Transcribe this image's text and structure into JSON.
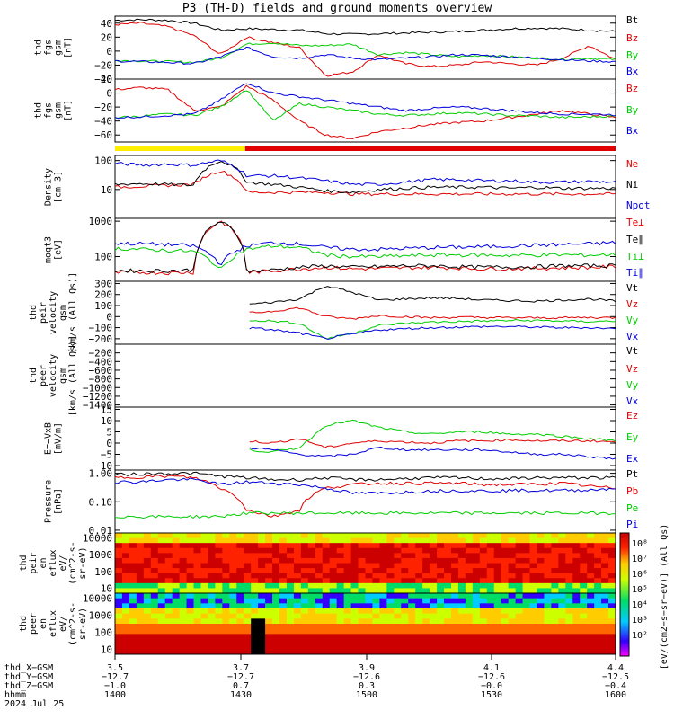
{
  "title": "P3 (TH-D) fields and ground moments overview",
  "colors": {
    "black": "#000000",
    "red": "#e00000",
    "green": "#00cc00",
    "blue": "#0000dd",
    "yellow": "#ffee00"
  },
  "chart_data": [
    {
      "type": "line",
      "panel": "fgs_gsm",
      "ylabel": [
        "thd",
        "fgs",
        "gsm",
        "[nT]"
      ],
      "ylim": [
        -40,
        50
      ],
      "yticks": [
        "40",
        "20",
        "0",
        "−20",
        "−40"
      ],
      "series": [
        {
          "name": "Bt",
          "color": "black",
          "values": [
            44,
            45,
            44,
            40,
            30,
            32,
            31,
            30,
            25,
            24,
            25,
            26,
            27,
            28,
            30,
            32,
            33,
            32,
            30,
            28
          ]
        },
        {
          "name": "Bz",
          "color": "red",
          "values": [
            38,
            40,
            35,
            22,
            -5,
            20,
            12,
            5,
            -35,
            -30,
            -5,
            -18,
            -22,
            -20,
            -15,
            -18,
            -20,
            -10,
            8,
            -12
          ]
        },
        {
          "name": "By",
          "color": "green",
          "values": [
            -13,
            -14,
            -15,
            -16,
            -10,
            10,
            12,
            8,
            8,
            10,
            -5,
            -2,
            -5,
            -8,
            -6,
            -8,
            -10,
            -12,
            -10,
            -12
          ]
        },
        {
          "name": "Bx",
          "color": "blue",
          "values": [
            -14,
            -15,
            -16,
            -18,
            -8,
            5,
            -8,
            -10,
            -5,
            -10,
            -12,
            -10,
            -8,
            -5,
            -6,
            -8,
            -10,
            -12,
            -14,
            -15
          ]
        }
      ],
      "legend": [
        "Bt",
        "Bz",
        "By",
        "Bx"
      ]
    },
    {
      "type": "line",
      "panel": "fgs_gse_zoom",
      "ylabel": [
        "thd",
        "fgs",
        "gsm",
        "[nT]"
      ],
      "ylim": [
        -70,
        20
      ],
      "yticks": [
        "20",
        "0",
        "−20",
        "−40",
        "−60"
      ],
      "series": [
        {
          "name": "Bz",
          "color": "red",
          "values": [
            5,
            8,
            5,
            -25,
            -20,
            10,
            -10,
            -40,
            -60,
            -65,
            -55,
            -50,
            -45,
            -42,
            -40,
            -35,
            -30,
            -25,
            -30,
            -35
          ]
        },
        {
          "name": "By",
          "color": "green",
          "values": [
            -35,
            -33,
            -30,
            -32,
            -20,
            5,
            -40,
            -15,
            -20,
            -25,
            -30,
            -32,
            -30,
            -28,
            -30,
            -32,
            -33,
            -35,
            -34,
            -33
          ]
        },
        {
          "name": "Bx",
          "color": "blue",
          "values": [
            -35,
            -34,
            -32,
            -30,
            -10,
            15,
            0,
            -5,
            -10,
            -15,
            -20,
            -25,
            -22,
            -20,
            -22,
            -25,
            -28,
            -30,
            -30,
            -31
          ]
        }
      ],
      "legend": [
        "Bz",
        "By",
        "Bx"
      ]
    },
    {
      "type": "line",
      "panel": "density",
      "yscale": "log",
      "ylabel": [
        "Density",
        "[cm−3]"
      ],
      "ylim": [
        1,
        150
      ],
      "yticks": [
        "100",
        "10"
      ],
      "series": [
        {
          "name": "Ne",
          "color": "red",
          "values": [
            12,
            13,
            14,
            15,
            45,
            8,
            8,
            8,
            8,
            7,
            7,
            7,
            7,
            7,
            7,
            7,
            7,
            7,
            7,
            7
          ]
        },
        {
          "name": "Ni",
          "color": "black",
          "values": [
            15,
            16,
            15,
            14,
            100,
            18,
            15,
            12,
            9,
            8,
            10,
            11,
            12,
            12,
            12,
            11,
            12,
            11,
            11,
            11
          ]
        },
        {
          "name": "Npot",
          "color": "blue",
          "values": [
            80,
            70,
            75,
            70,
            100,
            30,
            30,
            25,
            20,
            15,
            15,
            18,
            22,
            22,
            20,
            20,
            18,
            18,
            19,
            18
          ]
        }
      ],
      "legend": [
        "Ne",
        "Ni",
        "Npot"
      ]
    },
    {
      "type": "line",
      "panel": "temperature",
      "yscale": "log",
      "ylabel": [
        "moqt3",
        "[eV]"
      ],
      "ylim": [
        20,
        1200
      ],
      "yticks": [
        "1000",
        "100"
      ],
      "series": [
        {
          "name": "Te⊥",
          "color": "red",
          "values": [
            35,
            36,
            35,
            36,
            1000,
            35,
            40,
            45,
            50,
            45,
            46,
            48,
            50,
            48,
            45,
            46,
            47,
            48,
            50,
            52
          ]
        },
        {
          "name": "Te∥",
          "color": "black",
          "values": [
            40,
            40,
            40,
            42,
            1000,
            38,
            42,
            50,
            55,
            50,
            52,
            55,
            55,
            52,
            50,
            51,
            52,
            55,
            55,
            56
          ]
        },
        {
          "name": "Ti⊥",
          "color": "green",
          "values": [
            170,
            160,
            150,
            140,
            40,
            160,
            200,
            180,
            110,
            100,
            100,
            105,
            110,
            112,
            110,
            108,
            110,
            112,
            110,
            115
          ]
        },
        {
          "name": "Ti∥",
          "color": "blue",
          "values": [
            240,
            230,
            220,
            200,
            60,
            200,
            250,
            230,
            180,
            160,
            160,
            170,
            180,
            185,
            190,
            200,
            210,
            220,
            230,
            250
          ]
        }
      ],
      "legend": [
        "Te⊥",
        "Te∥",
        "Ti⊥",
        "Ti∥"
      ]
    },
    {
      "type": "line",
      "panel": "peir_velocity",
      "ylabel": [
        "thd",
        "peir",
        "velocity",
        "gsm",
        "[km/s (All Qs)]"
      ],
      "ylim": [
        -250,
        320
      ],
      "yticks": [
        "300",
        "200",
        "100",
        "0",
        "−100",
        "−200"
      ],
      "series": [
        {
          "name": "Vt",
          "color": "black",
          "values": [
            null,
            null,
            null,
            null,
            null,
            110,
            130,
            160,
            280,
            220,
            150,
            160,
            170,
            165,
            150,
            145,
            140,
            150,
            160,
            140
          ]
        },
        {
          "name": "Vz",
          "color": "red",
          "values": [
            null,
            null,
            null,
            null,
            null,
            30,
            50,
            80,
            0,
            -20,
            10,
            0,
            -10,
            -5,
            -8,
            -10,
            -12,
            -10,
            -8,
            -10
          ]
        },
        {
          "name": "Vy",
          "color": "green",
          "values": [
            null,
            null,
            null,
            null,
            null,
            -30,
            -40,
            -60,
            -200,
            -150,
            -80,
            -60,
            -50,
            -45,
            -40,
            -35,
            -35,
            -40,
            -45,
            -40
          ]
        },
        {
          "name": "Vx",
          "color": "blue",
          "values": [
            null,
            null,
            null,
            null,
            null,
            -100,
            -120,
            -150,
            -200,
            -160,
            -120,
            -110,
            -100,
            -95,
            -90,
            -90,
            -95,
            -100,
            -100,
            -110
          ]
        }
      ],
      "legend": [
        "Vt",
        "Vz",
        "Vy",
        "Vx"
      ]
    },
    {
      "type": "line",
      "panel": "peer_velocity",
      "ylabel": [
        "thd",
        "peer",
        "velocity",
        "gsm",
        "[km/s (All Qs)]"
      ],
      "ylim": [
        -1450,
        0
      ],
      "yticks": [
        "−200",
        "−400",
        "−600",
        "−800",
        "−1000",
        "−1200",
        "−1400"
      ],
      "series": [],
      "legend": [
        "Vt",
        "Vz",
        "Vy",
        "Vx"
      ]
    },
    {
      "type": "line",
      "panel": "efield",
      "ylabel": [
        "E=−VxB",
        "[mV/m]"
      ],
      "ylim": [
        -12,
        16
      ],
      "yticks": [
        "15",
        "10",
        "5",
        "0",
        "−5",
        "−10"
      ],
      "series": [
        {
          "name": "Ez",
          "color": "red",
          "values": [
            null,
            null,
            null,
            null,
            null,
            1,
            0,
            2,
            -2,
            0,
            1,
            0.5,
            0,
            1,
            1,
            1.5,
            1,
            1,
            1,
            0.5
          ]
        },
        {
          "name": "Ey",
          "color": "green",
          "values": [
            null,
            null,
            null,
            null,
            null,
            -3,
            -4,
            -2,
            8,
            10,
            7,
            5,
            4,
            5,
            5,
            4,
            4,
            3,
            2,
            1
          ]
        },
        {
          "name": "Ex",
          "color": "blue",
          "values": [
            null,
            null,
            null,
            null,
            null,
            -2,
            -3,
            -5,
            -6,
            -5,
            -2,
            -3,
            -3,
            -3,
            -3,
            -4,
            -5,
            -5,
            -6,
            -7
          ]
        }
      ],
      "legend": [
        "Ez",
        "Ey",
        "Ex"
      ]
    },
    {
      "type": "line",
      "panel": "pressure",
      "yscale": "log",
      "ylabel": [
        "Pressure",
        "[nPa]"
      ],
      "ylim": [
        0.008,
        1.3
      ],
      "yticks": [
        "1.00",
        "0.10",
        "0.01"
      ],
      "series": [
        {
          "name": "Pt",
          "color": "black",
          "values": [
            0.9,
            0.95,
            1.0,
            1.0,
            0.8,
            0.7,
            0.6,
            0.6,
            0.7,
            0.6,
            0.6,
            0.65,
            0.7,
            0.7,
            0.65,
            0.65,
            0.7,
            0.7,
            0.7,
            0.7
          ]
        },
        {
          "name": "Pb",
          "color": "red",
          "values": [
            0.7,
            0.75,
            0.8,
            0.7,
            0.3,
            0.05,
            0.03,
            0.05,
            0.3,
            0.4,
            0.45,
            0.45,
            0.45,
            0.45,
            0.4,
            0.4,
            0.42,
            0.45,
            0.35,
            0.3
          ]
        },
        {
          "name": "Pe",
          "color": "green",
          "values": [
            0.03,
            0.03,
            0.03,
            0.03,
            0.03,
            0.04,
            0.04,
            0.04,
            0.04,
            0.04,
            0.04,
            0.04,
            0.04,
            0.04,
            0.04,
            0.04,
            0.04,
            0.04,
            0.04,
            0.04
          ]
        },
        {
          "name": "Pi",
          "color": "blue",
          "values": [
            0.5,
            0.5,
            0.6,
            0.6,
            0.4,
            0.5,
            0.45,
            0.4,
            0.3,
            0.2,
            0.2,
            0.22,
            0.24,
            0.25,
            0.24,
            0.25,
            0.25,
            0.25,
            0.26,
            0.3
          ]
        }
      ],
      "legend": [
        "Pt",
        "Pb",
        "Pe",
        "Pi"
      ]
    },
    {
      "type": "heatmap",
      "panel": "peir_spectrogram",
      "yscale": "log",
      "ylabel": [
        "thd",
        "peir",
        "en",
        "eflux",
        "eV/",
        "(cm^2-s-",
        "sr-eV)"
      ],
      "ylim": [
        5,
        20000
      ],
      "yticks": [
        "10000",
        "1000",
        "100",
        "10"
      ]
    },
    {
      "type": "heatmap",
      "panel": "peer_spectrogram",
      "yscale": "log",
      "ylabel": [
        "thd",
        "peer",
        "en",
        "eflux",
        "eV/",
        "(cm^2-s-",
        "sr-eV)"
      ],
      "ylim": [
        5,
        20000
      ],
      "yticks": [
        "10000",
        "1000",
        "100",
        "10"
      ]
    }
  ],
  "colorbar": {
    "label": "[eV/(cm2−s−sr−eV)] (All Qs)",
    "ticks": [
      "10⁸",
      "10⁷",
      "10⁶",
      "10⁵",
      "10⁴",
      "10³",
      "10²"
    ]
  },
  "status_bar": {
    "segments": [
      {
        "color": "yellow",
        "from": 0,
        "to": 0.26
      },
      {
        "color": "red",
        "from": 0.26,
        "to": 1
      }
    ]
  },
  "xaxis": {
    "rows": [
      {
        "label": "thd_X−GSM",
        "values": [
          "3.5",
          "3.7",
          "3.9",
          "4.1",
          "4.4"
        ]
      },
      {
        "label": "thd_Y−GSM",
        "values": [
          "−12.7",
          "−12.7",
          "−12.6",
          "−12.6",
          "−12.5"
        ]
      },
      {
        "label": "thd_Z−GSM",
        "values": [
          "−1.0",
          "0.7",
          "0.3",
          "−0.0",
          "−0.4"
        ]
      },
      {
        "label": "hhmm",
        "values": [
          "1400",
          "1430",
          "1500",
          "1530",
          "1600"
        ]
      }
    ],
    "date": "2024 Jul 25"
  }
}
